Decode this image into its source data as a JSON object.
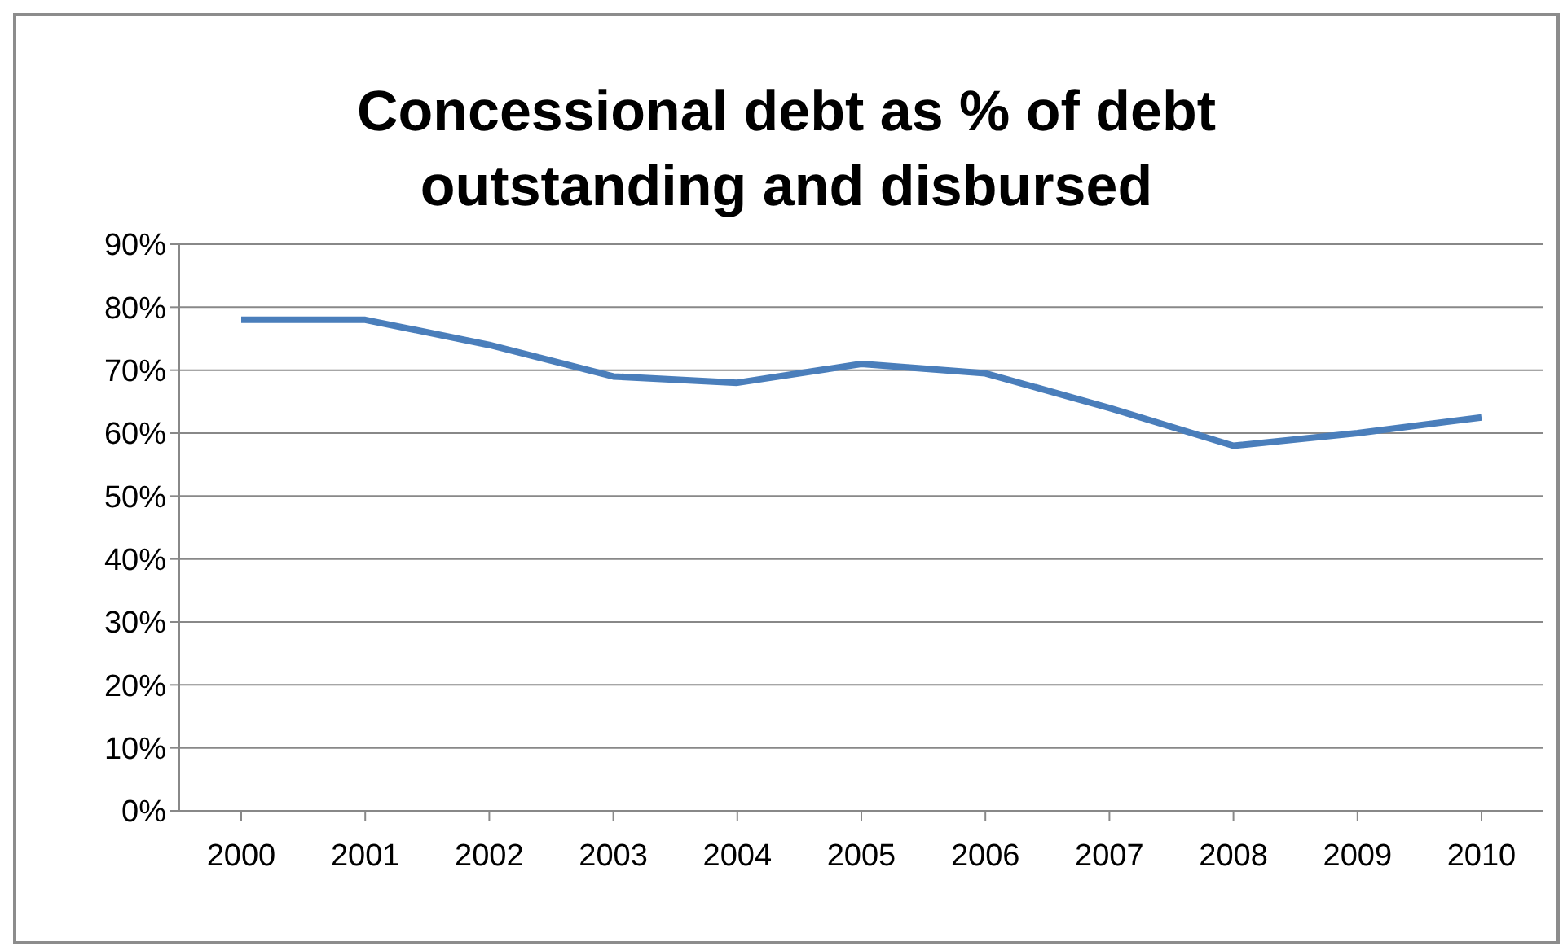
{
  "chart_data": {
    "type": "line",
    "title": "Concessional debt as % of debt outstanding and disbursed",
    "categories": [
      "2000",
      "2001",
      "2002",
      "2003",
      "2004",
      "2005",
      "2006",
      "2007",
      "2008",
      "2009",
      "2010"
    ],
    "series": [
      {
        "color": "#4a7ebb",
        "values": [
          78,
          78,
          74,
          69,
          68,
          71,
          69.5,
          64,
          58,
          60,
          62.5
        ]
      }
    ],
    "ylim": [
      0,
      90
    ],
    "yticks": [
      {
        "value": 0,
        "label": "0%"
      },
      {
        "value": 10,
        "label": "10%"
      },
      {
        "value": 20,
        "label": "20%"
      },
      {
        "value": 30,
        "label": "30%"
      },
      {
        "value": 40,
        "label": "40%"
      },
      {
        "value": 50,
        "label": "50%"
      },
      {
        "value": 60,
        "label": "60%"
      },
      {
        "value": 70,
        "label": "70%"
      },
      {
        "value": 80,
        "label": "80%"
      },
      {
        "value": 90,
        "label": "90%"
      }
    ],
    "grid": "y",
    "legend": false,
    "marker": "none",
    "line_style": "solid"
  }
}
